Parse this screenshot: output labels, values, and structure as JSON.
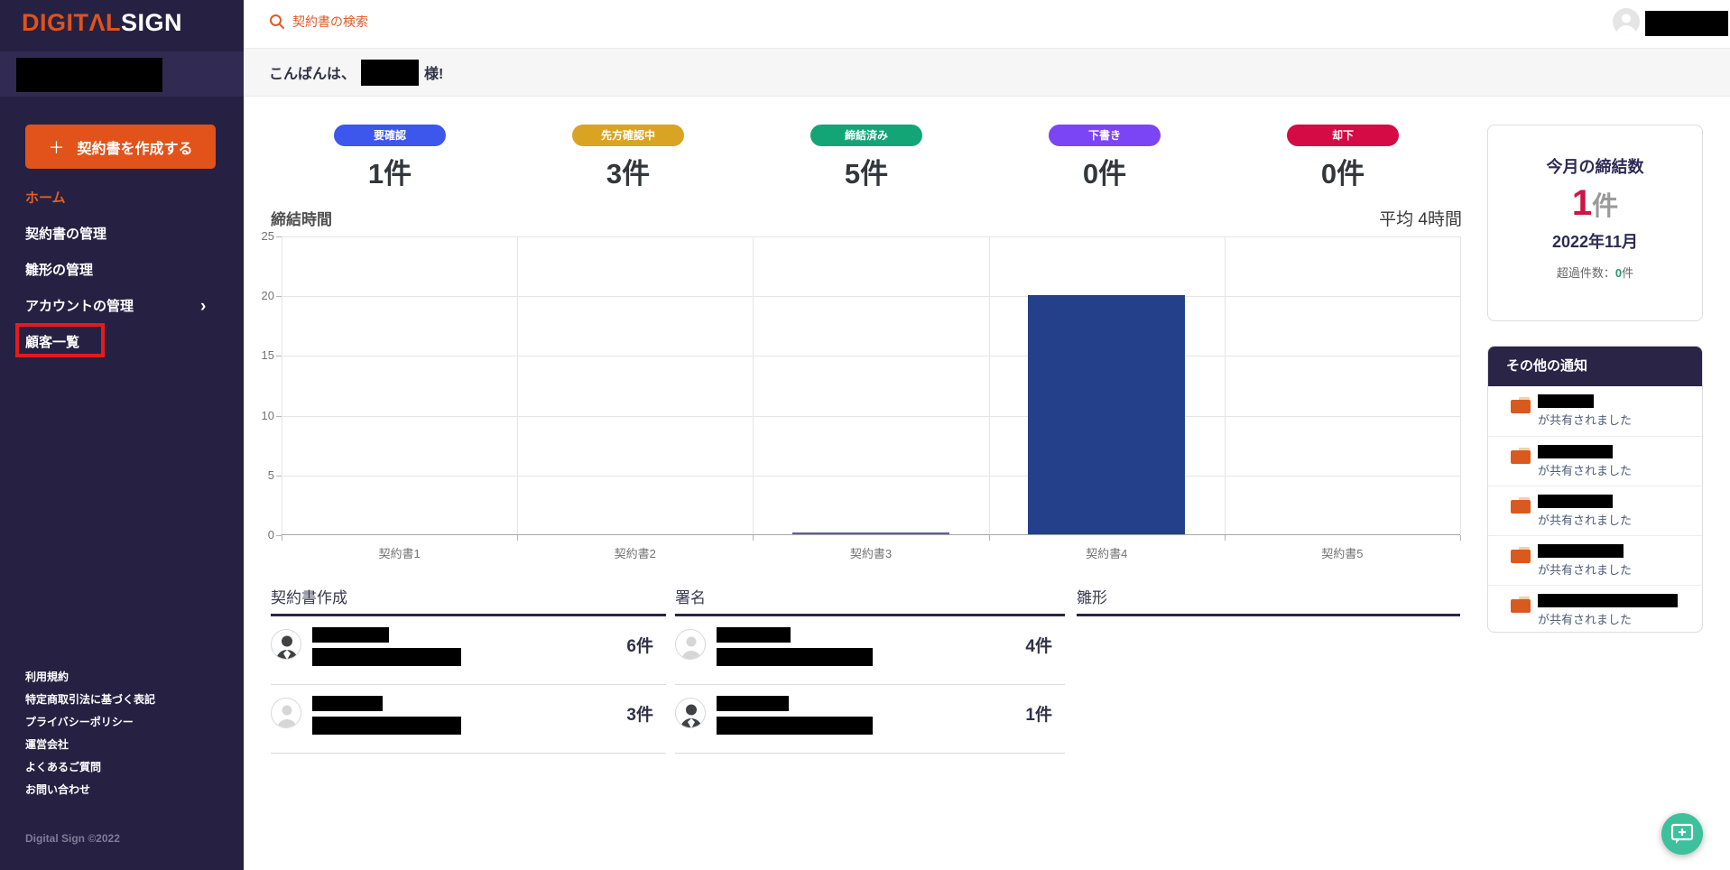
{
  "sidebar": {
    "logo": {
      "part1": "DIGITΛL",
      "part2": "SIGN"
    },
    "create_button": {
      "plus": "＋",
      "label": "契約書を作成する"
    },
    "nav": [
      {
        "label": "ホーム"
      },
      {
        "label": "契約書の管理"
      },
      {
        "label": "雛形の管理"
      },
      {
        "label": "アカウントの管理",
        "chevron": "›"
      },
      {
        "label": "顧客一覧"
      }
    ],
    "footer_links": [
      "利用規約",
      "特定商取引法に基づく表記",
      "プライバシーポリシー",
      "運営会社",
      "よくあるご質問",
      "お問い合わせ"
    ],
    "copyright": "Digital Sign ©2022"
  },
  "topbar": {
    "search_label": "契約書の検索"
  },
  "greeting": {
    "prefix": "こんばんは、",
    "suffix": "様!"
  },
  "status_badges": [
    {
      "label": "要確認",
      "count": "1件",
      "color": "#3d56ec"
    },
    {
      "label": "先方確認中",
      "count": "3件",
      "color": "#d9a424"
    },
    {
      "label": "締結済み",
      "count": "5件",
      "color": "#13a576"
    },
    {
      "label": "下書き",
      "count": "0件",
      "color": "#7b45f5"
    },
    {
      "label": "却下",
      "count": "0件",
      "color": "#d50b45"
    }
  ],
  "chart_data": {
    "type": "bar",
    "title": "締結時間",
    "annotation": "平均 4時間",
    "categories": [
      "契約書1",
      "契約書2",
      "契約書3",
      "契約書4",
      "契約書5"
    ],
    "values": [
      0,
      0,
      0.15,
      20,
      0
    ],
    "ylim": [
      0,
      25
    ],
    "yticks": [
      0,
      5,
      10,
      15,
      20,
      25
    ],
    "bar_colors": [
      "#24408a",
      "#24408a",
      "#615e93",
      "#24408a",
      "#24408a"
    ],
    "grid": true,
    "legend": "none"
  },
  "summary_card": {
    "title": "今月の締結数",
    "count_value": "1",
    "count_unit": "件",
    "month": "2022年11月",
    "overflow_label": "超過件数：",
    "overflow_value": "0",
    "overflow_unit": "件"
  },
  "notifications": {
    "title": "その他の通知",
    "items": [
      {
        "text": "が共有されました"
      },
      {
        "text": "が共有されました"
      },
      {
        "text": "が共有されました"
      },
      {
        "text": "が共有されました"
      },
      {
        "text": "が共有されました"
      }
    ]
  },
  "lists": [
    {
      "title": "契約書作成",
      "rows": [
        {
          "count": "6件"
        },
        {
          "count": "3件"
        }
      ]
    },
    {
      "title": "署名",
      "rows": [
        {
          "count": "4件"
        },
        {
          "count": "1件"
        }
      ]
    },
    {
      "title": "雛形",
      "rows": []
    }
  ]
}
